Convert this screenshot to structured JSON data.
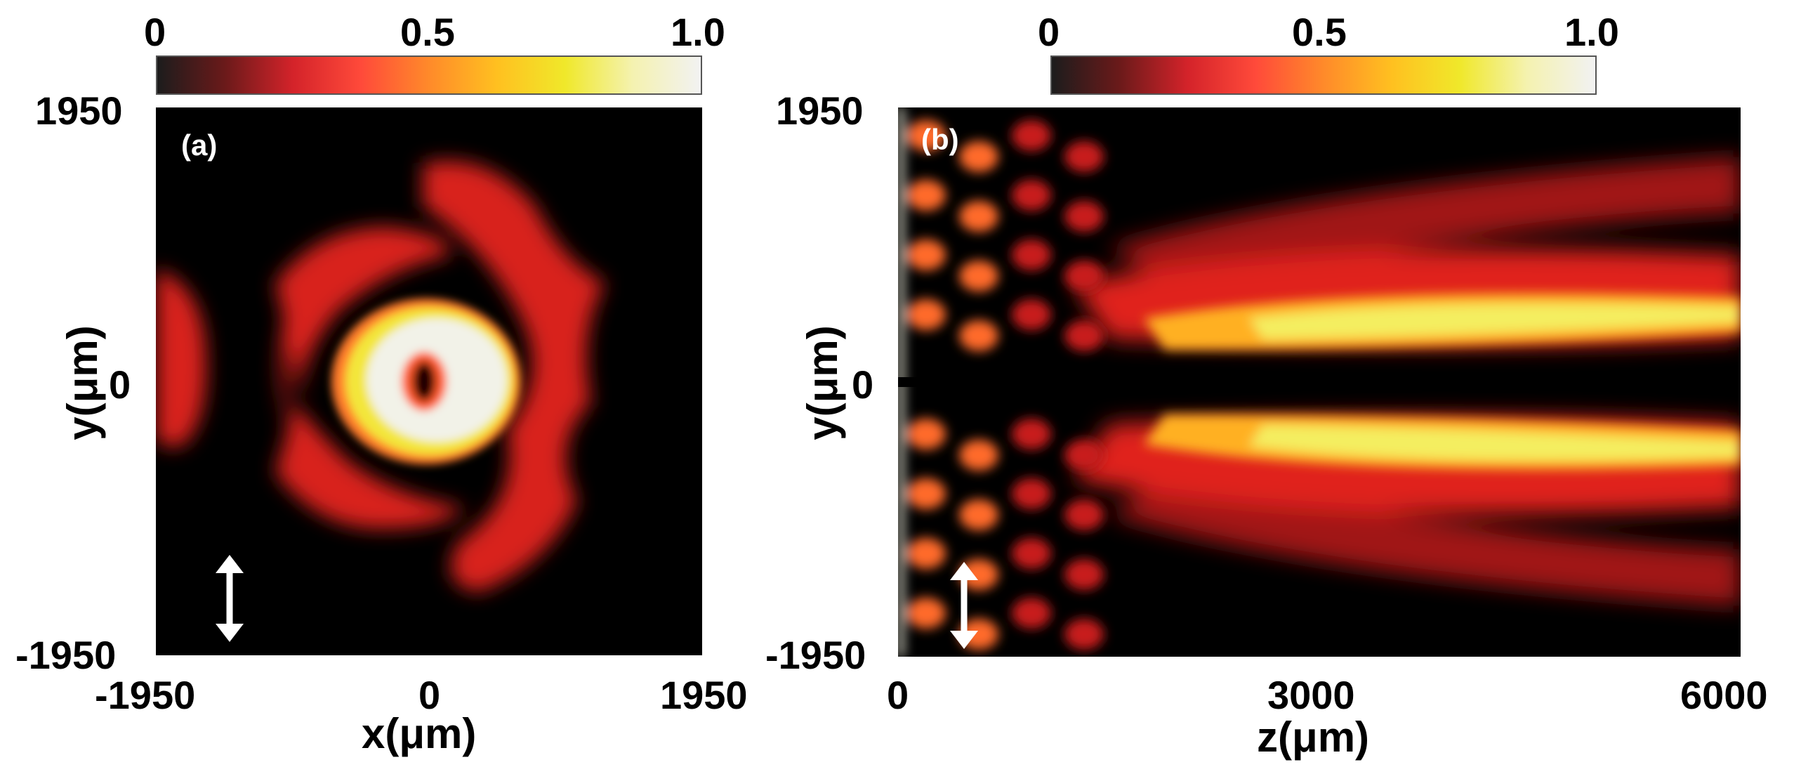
{
  "colors": {
    "colormap": [
      "#1c1c1c",
      "#6b1a1a",
      "#d4232a",
      "#ff4a3a",
      "#ff8a2a",
      "#ffc020",
      "#f0e82a",
      "#f4f2b0",
      "#f2f2f2"
    ],
    "background": "#000000",
    "arrow": "#ffffff"
  },
  "chart_data": [
    {
      "type": "heatmap",
      "panel_label": "(a)",
      "xlabel": "x(μm)",
      "ylabel": "y(μm)",
      "xlim": [
        -1950,
        1950
      ],
      "ylim": [
        -1950,
        1950
      ],
      "xticks": [
        "-1950",
        "0",
        "1950"
      ],
      "yticks": [
        "1950",
        "0",
        "-1950"
      ],
      "colorbar": {
        "range": [
          0,
          1.0
        ],
        "ticks": [
          "0",
          "0.5",
          "1.0"
        ]
      },
      "polarization_arrow": "vertical double-headed arrow",
      "features": "bright ring with dark central null at origin, surrounded by weaker red side lobes"
    },
    {
      "type": "heatmap",
      "panel_label": "(b)",
      "xlabel": "z(μm)",
      "ylabel": "y(μm)",
      "xlim": [
        0,
        6000
      ],
      "ylim": [
        -1950,
        1950
      ],
      "xticks": [
        "0",
        "3000",
        "6000"
      ],
      "yticks": [
        "1950",
        "0",
        "-1950"
      ],
      "colorbar": {
        "range": [
          0,
          1.0
        ],
        "ticks": [
          "0",
          "0.5",
          "1.0"
        ]
      },
      "polarization_arrow": "vertical double-headed arrow",
      "features": "two bright bands symmetric about y=0 propagating along z with dark null on axis; interference fringes near z=0"
    }
  ]
}
